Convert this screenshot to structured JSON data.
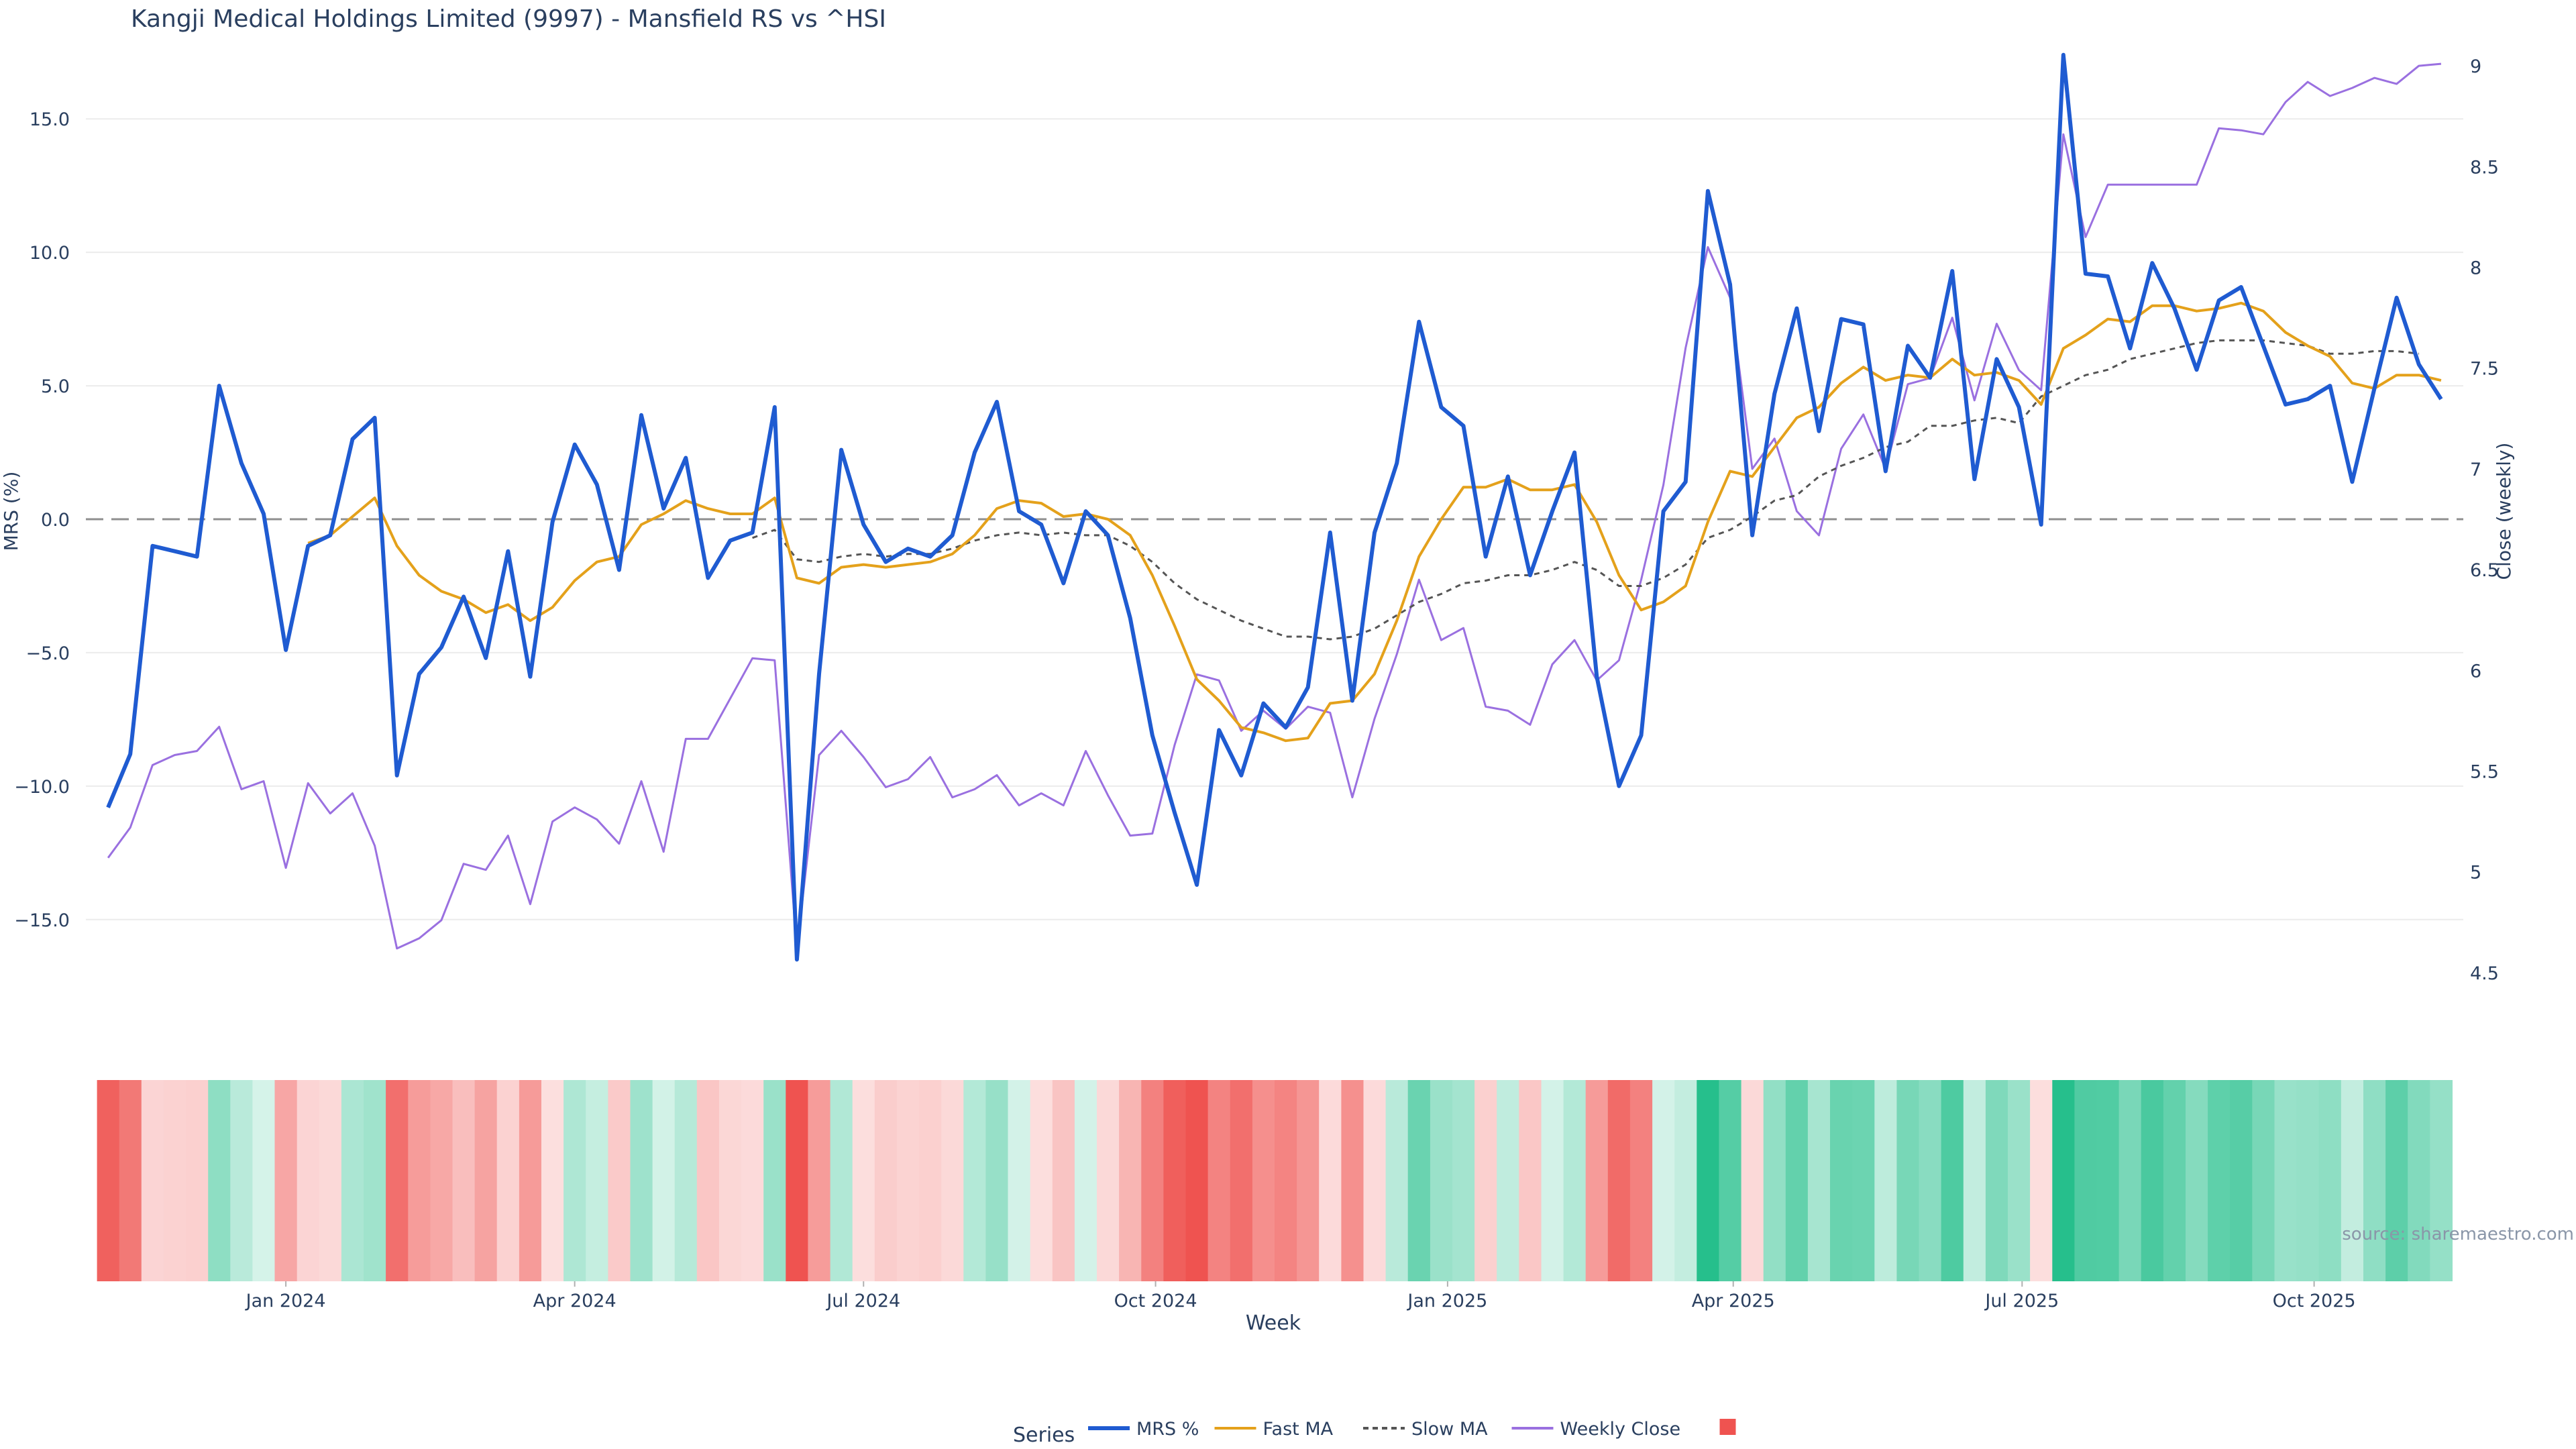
{
  "chart_data": {
    "type": "line",
    "title": "Kangji Medical Holdings Limited (9997) - Mansfield RS vs ^HSI",
    "xlabel": "Week",
    "ylabel": "MRS (%)",
    "y2label": "Close (weekly)",
    "ylim": [
      -18.5,
      18.5
    ],
    "y2lim": [
      4.3,
      9.2
    ],
    "yticks": [
      -15,
      -10,
      -5,
      0,
      5,
      10,
      15
    ],
    "ytick_labels": [
      "−15.0",
      "−10.0",
      "−5.0",
      "0.0",
      "5.0",
      "10.0",
      "15.0"
    ],
    "y2ticks": [
      4.5,
      5,
      5.5,
      6,
      6.5,
      7,
      7.5,
      8,
      8.5,
      9
    ],
    "y2tick_labels": [
      "4.5",
      "5",
      "5.5",
      "6",
      "6.5",
      "7",
      "7.5",
      "8",
      "8.5",
      "9"
    ],
    "xlim": [
      "2023-10-30",
      "2025-11-17"
    ],
    "xticks": [
      "2024-01-01",
      "2024-04-01",
      "2024-07-01",
      "2024-10-01",
      "2025-01-01",
      "2025-04-01",
      "2025-07-01",
      "2025-10-01"
    ],
    "xtick_labels": [
      "Jan 2024",
      "Apr 2024",
      "Jul 2024",
      "Oct 2024",
      "Jan 2025",
      "Apr 2025",
      "Jul 2025",
      "Oct 2025"
    ],
    "zero_line": true,
    "grid": true,
    "legend_title": "Series",
    "legend_position": "bottom",
    "source_note": "source: sharemaestro.com",
    "first_week": "2023-11-06",
    "series": [
      {
        "name": "MRS %",
        "color": "#1f5bd1",
        "style": "solid",
        "axis": "left",
        "values": [
          -10.8,
          -8.8,
          -1.0,
          -1.2,
          -1.4,
          5.0,
          2.1,
          0.2,
          -4.9,
          -1.0,
          -0.6,
          3.0,
          3.8,
          -9.6,
          -5.8,
          -4.8,
          -2.9,
          -5.2,
          -1.2,
          -5.9,
          -0.1,
          2.8,
          1.3,
          -1.9,
          3.9,
          0.4,
          2.3,
          -2.2,
          -0.8,
          -0.5,
          4.2,
          -16.5,
          -5.8,
          2.6,
          -0.2,
          -1.6,
          -1.1,
          -1.4,
          -0.6,
          2.5,
          4.4,
          0.3,
          -0.2,
          -2.4,
          0.3,
          -0.6,
          -3.7,
          -8.1,
          -11.0,
          -13.7,
          -7.9,
          -9.6,
          -6.9,
          -7.8,
          -6.3,
          -0.5,
          -6.8,
          -0.5,
          2.1,
          7.4,
          4.2,
          3.5,
          -1.4,
          1.6,
          -2.1,
          0.3,
          2.5,
          -5.9,
          -10.0,
          -8.1,
          0.3,
          1.4,
          12.3,
          8.8,
          -0.6,
          4.7,
          7.9,
          3.3,
          7.5,
          7.3,
          1.8,
          6.5,
          5.3,
          9.3,
          1.5,
          6.0,
          4.2,
          -0.2,
          17.4,
          9.2,
          9.1,
          6.4,
          9.6,
          7.9,
          5.6,
          8.2,
          8.7,
          6.5,
          4.3,
          4.5,
          5.0,
          1.4,
          4.9,
          8.3,
          5.8,
          4.5
        ]
      },
      {
        "name": "Fast MA",
        "color": "#e4a11b",
        "style": "solid",
        "axis": "left",
        "start": 9,
        "values": [
          -0.9,
          -0.6,
          0.1,
          0.8,
          -1.0,
          -2.1,
          -2.7,
          -3.0,
          -3.5,
          -3.2,
          -3.8,
          -3.3,
          -2.3,
          -1.6,
          -1.4,
          -0.2,
          0.2,
          0.7,
          0.4,
          0.2,
          0.2,
          0.8,
          -2.2,
          -2.4,
          -1.8,
          -1.7,
          -1.8,
          -1.7,
          -1.6,
          -1.3,
          -0.6,
          0.4,
          0.7,
          0.6,
          0.1,
          0.2,
          0.0,
          -0.6,
          -2.1,
          -4.0,
          -6.0,
          -6.8,
          -7.8,
          -8.0,
          -8.3,
          -8.2,
          -6.9,
          -6.8,
          -5.8,
          -3.8,
          -1.4,
          0.0,
          1.2,
          1.2,
          1.5,
          1.1,
          1.1,
          1.3,
          -0.1,
          -2.1,
          -3.4,
          -3.1,
          -2.5,
          -0.1,
          1.8,
          1.6,
          2.7,
          3.8,
          4.2,
          5.1,
          5.7,
          5.2,
          5.4,
          5.3,
          6.0,
          5.4,
          5.5,
          5.2,
          4.3,
          6.4,
          6.9,
          7.5,
          7.4,
          8.0,
          8.0,
          7.8,
          7.9,
          8.1,
          7.8,
          7.0,
          6.5,
          6.1,
          5.1,
          4.9,
          5.4,
          5.4,
          5.2
        ]
      },
      {
        "name": "Slow MA",
        "color": "#555555",
        "style": "dashed",
        "axis": "left",
        "start": 29,
        "values": [
          -0.7,
          -0.4,
          -1.5,
          -1.6,
          -1.4,
          -1.3,
          -1.4,
          -1.3,
          -1.3,
          -1.1,
          -0.8,
          -0.6,
          -0.5,
          -0.6,
          -0.5,
          -0.6,
          -0.6,
          -1.0,
          -1.6,
          -2.4,
          -3.0,
          -3.4,
          -3.8,
          -4.1,
          -4.4,
          -4.4,
          -4.5,
          -4.4,
          -4.1,
          -3.6,
          -3.1,
          -2.8,
          -2.4,
          -2.3,
          -2.1,
          -2.1,
          -1.9,
          -1.6,
          -1.9,
          -2.5,
          -2.5,
          -2.2,
          -1.7,
          -0.7,
          -0.4,
          0.1,
          0.7,
          0.9,
          1.6,
          2.0,
          2.3,
          2.7,
          2.9,
          3.5,
          3.5,
          3.7,
          3.8,
          3.6,
          4.6,
          5.0,
          5.4,
          5.6,
          6.0,
          6.2,
          6.4,
          6.6,
          6.7,
          6.7,
          6.7,
          6.6,
          6.5,
          6.2,
          6.2,
          6.3,
          6.3,
          6.2
        ]
      },
      {
        "name": "Weekly Close",
        "color": "#9a70e0",
        "style": "solid",
        "axis": "right",
        "values": [
          5.07,
          5.22,
          5.53,
          5.58,
          5.6,
          5.72,
          5.41,
          5.45,
          5.02,
          5.44,
          5.29,
          5.39,
          5.13,
          4.62,
          4.67,
          4.76,
          5.04,
          5.01,
          5.18,
          4.84,
          5.25,
          5.32,
          5.26,
          5.14,
          5.45,
          5.1,
          5.66,
          5.66,
          5.86,
          6.06,
          6.05,
          4.62,
          5.58,
          5.7,
          5.57,
          5.42,
          5.46,
          5.57,
          5.37,
          5.41,
          5.48,
          5.33,
          5.39,
          5.33,
          5.6,
          5.38,
          5.18,
          5.19,
          5.63,
          5.98,
          5.95,
          5.7,
          5.8,
          5.71,
          5.82,
          5.79,
          5.37,
          5.76,
          6.08,
          6.45,
          6.15,
          6.21,
          5.82,
          5.8,
          5.73,
          6.03,
          6.15,
          5.95,
          6.05,
          6.45,
          6.92,
          7.6,
          8.1,
          7.85,
          7.0,
          7.15,
          6.79,
          6.67,
          7.1,
          7.27,
          7.0,
          7.42,
          7.45,
          7.75,
          7.34,
          7.72,
          7.49,
          7.39,
          8.66,
          8.15,
          8.41,
          8.41,
          8.41,
          8.41,
          8.41,
          8.69,
          8.68,
          8.66,
          8.82,
          8.92,
          8.85,
          8.89,
          8.94,
          8.91,
          9.0,
          9.01
        ]
      }
    ],
    "heat_strip": {
      "values": [
        -10.8,
        -8.8,
        -1.0,
        -1.2,
        -1.4,
        5.0,
        2.1,
        0.2,
        -4.9,
        -1.0,
        -0.6,
        3.0,
        3.8,
        -9.6,
        -5.8,
        -4.8,
        -2.9,
        -5.2,
        -1.2,
        -5.9,
        -0.1,
        2.8,
        1.3,
        -1.9,
        3.9,
        0.4,
        2.3,
        -2.2,
        -0.8,
        -0.5,
        4.2,
        -16.5,
        -5.8,
        2.6,
        -0.2,
        -1.6,
        -1.1,
        -1.4,
        -0.6,
        2.5,
        4.4,
        0.3,
        -0.2,
        -2.4,
        0.3,
        -0.6,
        -3.7,
        -8.1,
        -11.0,
        -13.7,
        -7.9,
        -9.6,
        -6.9,
        -7.8,
        -6.3,
        -0.5,
        -6.8,
        -0.5,
        2.1,
        7.4,
        4.2,
        3.5,
        -1.4,
        1.6,
        -2.1,
        0.3,
        2.5,
        -5.9,
        -10.0,
        -8.1,
        0.3,
        1.4,
        12.3,
        8.8,
        -0.6,
        4.7,
        7.9,
        3.3,
        7.5,
        7.3,
        1.8,
        6.5,
        5.3,
        9.3,
        1.5,
        6.0,
        4.2,
        -0.2,
        17.4,
        9.2,
        9.1,
        6.4,
        9.6,
        7.9,
        5.6,
        8.2,
        8.7,
        6.5,
        4.3,
        4.5,
        5.0,
        1.4,
        4.9,
        8.3,
        5.8,
        4.5
      ],
      "color_neg": "#ef5350",
      "color_pos": "#26bf8c",
      "legend_swatch_color": "#ef5350"
    }
  }
}
